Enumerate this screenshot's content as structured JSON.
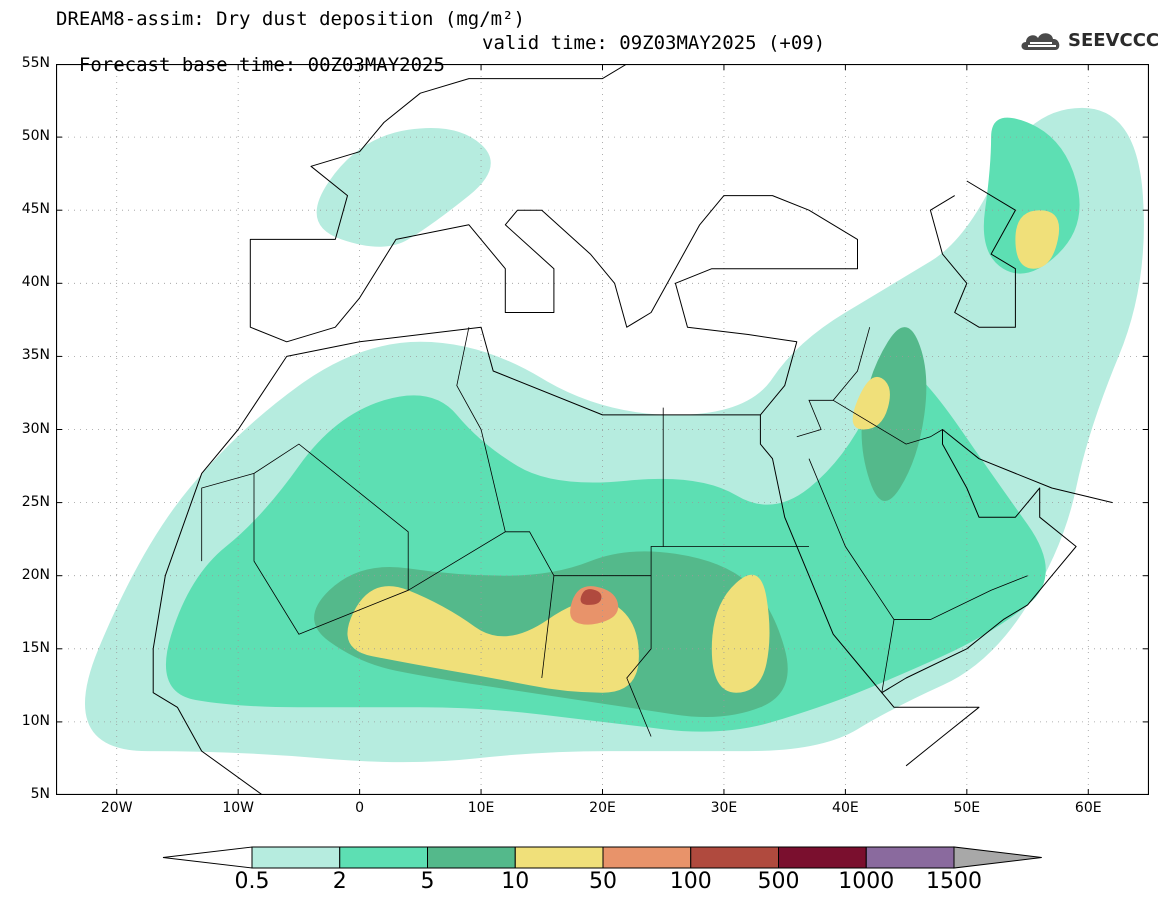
{
  "header": {
    "title": "DREAM8-assim: Dry dust deposition (mg/m²)",
    "base_time": "Forecast base time: 00Z03MAY2025",
    "valid_time": "valid time: 09Z03MAY2025 (+09)",
    "logo_text": "SEEVCCC",
    "logo_icon": "cloud-icon"
  },
  "axes": {
    "lat_labels": [
      "55N",
      "50N",
      "45N",
      "40N",
      "35N",
      "30N",
      "25N",
      "20N",
      "15N",
      "10N",
      "5N"
    ],
    "lon_labels": [
      "20W",
      "10W",
      "0",
      "10E",
      "20E",
      "30E",
      "40E",
      "50E",
      "60E"
    ],
    "lon_range": [
      -25,
      65
    ],
    "lat_range": [
      5,
      55
    ]
  },
  "colorbar": {
    "labels": [
      "0.5",
      "2",
      "5",
      "10",
      "50",
      "100",
      "500",
      "1000",
      "1500"
    ],
    "colors": [
      "#b6ecdf",
      "#5ddfb3",
      "#54b98b",
      "#f0e07a",
      "#e8936a",
      "#b04a3e",
      "#7a0f2e",
      "#8a6a9e",
      "#a8a8a8"
    ]
  },
  "map": {
    "background": "#ffffff",
    "regions": [
      {
        "level": 0,
        "points": [
          [
            -25,
            8
          ],
          [
            -18,
            22
          ],
          [
            -10,
            30
          ],
          [
            0,
            36
          ],
          [
            10,
            36
          ],
          [
            20,
            31
          ],
          [
            32,
            31
          ],
          [
            36,
            36
          ],
          [
            44,
            40
          ],
          [
            50,
            43
          ],
          [
            55,
            52
          ],
          [
            64,
            52
          ],
          [
            65,
            40
          ],
          [
            60,
            30
          ],
          [
            58,
            22
          ],
          [
            52,
            14
          ],
          [
            44,
            11
          ],
          [
            38,
            8
          ],
          [
            26,
            8
          ],
          [
            15,
            8
          ],
          [
            4,
            7
          ],
          [
            -10,
            8
          ]
        ]
      },
      {
        "level": 0,
        "points": [
          [
            -5,
            44
          ],
          [
            0,
            50
          ],
          [
            8,
            51
          ],
          [
            12,
            48
          ],
          [
            6,
            44
          ],
          [
            2,
            42
          ]
        ]
      },
      {
        "level": 1,
        "points": [
          [
            -17,
            12
          ],
          [
            -14,
            20
          ],
          [
            -8,
            24
          ],
          [
            -2,
            31
          ],
          [
            6,
            33
          ],
          [
            10,
            29
          ],
          [
            16,
            26
          ],
          [
            28,
            27
          ],
          [
            34,
            24
          ],
          [
            40,
            28
          ],
          [
            44,
            35
          ],
          [
            47,
            33
          ],
          [
            52,
            27
          ],
          [
            58,
            20
          ],
          [
            52,
            16
          ],
          [
            44,
            13
          ],
          [
            38,
            11
          ],
          [
            30,
            9
          ],
          [
            20,
            10
          ],
          [
            10,
            11
          ],
          [
            0,
            11
          ],
          [
            -10,
            11
          ]
        ]
      },
      {
        "level": 1,
        "points": [
          [
            52,
            52
          ],
          [
            58,
            50
          ],
          [
            60,
            44
          ],
          [
            55,
            40
          ],
          [
            51,
            42
          ],
          [
            52,
            48
          ]
        ]
      },
      {
        "level": 2,
        "points": [
          [
            -5,
            17
          ],
          [
            0,
            21
          ],
          [
            8,
            20
          ],
          [
            16,
            20
          ],
          [
            22,
            22
          ],
          [
            30,
            21
          ],
          [
            34,
            18
          ],
          [
            36,
            12
          ],
          [
            30,
            10
          ],
          [
            22,
            11
          ],
          [
            14,
            12
          ],
          [
            6,
            13
          ],
          [
            0,
            14
          ]
        ]
      },
      {
        "level": 2,
        "points": [
          [
            42,
            34
          ],
          [
            45,
            38
          ],
          [
            47,
            34
          ],
          [
            46,
            28
          ],
          [
            43,
            24
          ],
          [
            41,
            29
          ]
        ]
      },
      {
        "level": 3,
        "points": [
          [
            -2,
            15
          ],
          [
            1,
            20
          ],
          [
            7,
            18
          ],
          [
            12,
            15
          ],
          [
            19,
            19
          ],
          [
            23,
            17
          ],
          [
            23,
            12
          ],
          [
            17,
            12
          ],
          [
            11,
            13
          ],
          [
            4,
            14
          ]
        ]
      },
      {
        "level": 3,
        "points": [
          [
            29,
            12
          ],
          [
            29,
            18
          ],
          [
            33,
            21
          ],
          [
            34,
            16
          ],
          [
            33,
            12
          ]
        ]
      },
      {
        "level": 3,
        "points": [
          [
            40,
            30
          ],
          [
            42,
            34
          ],
          [
            44,
            33
          ],
          [
            43,
            30
          ]
        ]
      },
      {
        "level": 3,
        "points": [
          [
            54,
            41
          ],
          [
            54,
            45
          ],
          [
            58,
            45
          ],
          [
            57,
            41
          ]
        ]
      },
      {
        "level": 4,
        "points": [
          [
            17,
            17
          ],
          [
            18,
            19.5
          ],
          [
            21,
            19
          ],
          [
            21.5,
            17.3
          ],
          [
            19,
            16.5
          ]
        ]
      },
      {
        "level": 5,
        "points": [
          [
            18,
            18
          ],
          [
            18.5,
            19.2
          ],
          [
            20,
            18.9
          ],
          [
            19.8,
            18
          ]
        ]
      }
    ],
    "coastlines": [
      [
        [
          -17,
          15
        ],
        [
          -16,
          20
        ],
        [
          -13,
          27
        ],
        [
          -10,
          30
        ],
        [
          -6,
          35
        ],
        [
          0,
          36
        ],
        [
          10,
          37
        ],
        [
          11,
          34
        ],
        [
          20,
          31
        ],
        [
          30,
          31
        ],
        [
          33,
          31
        ],
        [
          35,
          33
        ],
        [
          36,
          36
        ],
        [
          32,
          36.5
        ],
        [
          27,
          37
        ],
        [
          26,
          40
        ],
        [
          29,
          41
        ],
        [
          38,
          41
        ],
        [
          41,
          41
        ],
        [
          41,
          43
        ],
        [
          37,
          45
        ],
        [
          34,
          46
        ],
        [
          30,
          46
        ],
        [
          28,
          44
        ],
        [
          24,
          38
        ],
        [
          22,
          37
        ],
        [
          21,
          40
        ],
        [
          19,
          42
        ],
        [
          15,
          45
        ],
        [
          13,
          45
        ],
        [
          12,
          44
        ],
        [
          16,
          41
        ],
        [
          16,
          38
        ],
        [
          12,
          38
        ],
        [
          12,
          41
        ],
        [
          9,
          44
        ],
        [
          3,
          43
        ],
        [
          0,
          39
        ],
        [
          -2,
          37
        ],
        [
          -6,
          36
        ],
        [
          -9,
          37
        ],
        [
          -9,
          43
        ],
        [
          -2,
          43
        ],
        [
          -1,
          46
        ],
        [
          -4,
          48
        ],
        [
          0,
          49
        ],
        [
          2,
          51
        ],
        [
          5,
          53
        ],
        [
          9,
          54
        ],
        [
          12,
          54
        ],
        [
          14,
          54
        ],
        [
          20,
          54
        ],
        [
          22,
          55
        ]
      ],
      [
        [
          33,
          31
        ],
        [
          33,
          29
        ],
        [
          34,
          28
        ],
        [
          35,
          24
        ],
        [
          37,
          20
        ],
        [
          39,
          16
        ],
        [
          42,
          13
        ],
        [
          43,
          12
        ],
        [
          45,
          13
        ],
        [
          50,
          15
        ],
        [
          53,
          17
        ],
        [
          55,
          18
        ],
        [
          57,
          20
        ],
        [
          59,
          22
        ],
        [
          56,
          24
        ],
        [
          56,
          26
        ],
        [
          54,
          24
        ],
        [
          51,
          24
        ],
        [
          50,
          26
        ],
        [
          48,
          29
        ],
        [
          48,
          30
        ],
        [
          51,
          28
        ],
        [
          54,
          27
        ],
        [
          57,
          26
        ],
        [
          62,
          25
        ]
      ],
      [
        [
          43,
          12
        ],
        [
          44,
          11
        ],
        [
          51,
          11
        ],
        [
          48,
          9
        ],
        [
          45,
          7
        ]
      ],
      [
        [
          -17,
          15
        ],
        [
          -17,
          12
        ],
        [
          -15,
          11
        ],
        [
          -13,
          8
        ],
        [
          -8,
          5
        ]
      ],
      [
        [
          49,
          46
        ],
        [
          47,
          45
        ],
        [
          48,
          42
        ],
        [
          50,
          40
        ],
        [
          49,
          38
        ],
        [
          51,
          37
        ],
        [
          54,
          37
        ],
        [
          54,
          41
        ],
        [
          52,
          42
        ],
        [
          54,
          45
        ],
        [
          50,
          47
        ]
      ]
    ],
    "borders": [
      [
        [
          -8.7,
          27
        ],
        [
          -8.7,
          21
        ],
        [
          -5,
          16
        ],
        [
          4,
          19
        ],
        [
          4,
          23
        ],
        [
          1,
          25
        ],
        [
          -5,
          29
        ],
        [
          -8.7,
          27
        ]
      ],
      [
        [
          -13,
          21
        ],
        [
          -13,
          26
        ],
        [
          -8.7,
          27
        ]
      ],
      [
        [
          4,
          19
        ],
        [
          12,
          23
        ],
        [
          14,
          23
        ],
        [
          16,
          20
        ],
        [
          15,
          13
        ]
      ],
      [
        [
          12,
          23
        ],
        [
          10,
          30
        ],
        [
          8,
          33
        ],
        [
          9,
          37
        ]
      ],
      [
        [
          16,
          20
        ],
        [
          24,
          20
        ],
        [
          24,
          22
        ],
        [
          25,
          22
        ],
        [
          25,
          31.5
        ]
      ],
      [
        [
          25,
          22
        ],
        [
          37,
          22
        ]
      ],
      [
        [
          24,
          20
        ],
        [
          24,
          15
        ],
        [
          22,
          13
        ],
        [
          24,
          9
        ]
      ],
      [
        [
          36,
          29.5
        ],
        [
          38,
          30
        ],
        [
          37,
          32
        ],
        [
          39,
          32
        ],
        [
          41,
          34
        ],
        [
          42,
          37
        ]
      ],
      [
        [
          39,
          32
        ],
        [
          45,
          29
        ],
        [
          47,
          29.5
        ],
        [
          48,
          30
        ]
      ],
      [
        [
          43,
          12
        ],
        [
          44,
          17
        ],
        [
          47,
          17
        ],
        [
          52,
          19
        ],
        [
          55,
          20
        ]
      ],
      [
        [
          47,
          17
        ],
        [
          44,
          17
        ],
        [
          40,
          22
        ],
        [
          37,
          28
        ]
      ]
    ]
  }
}
